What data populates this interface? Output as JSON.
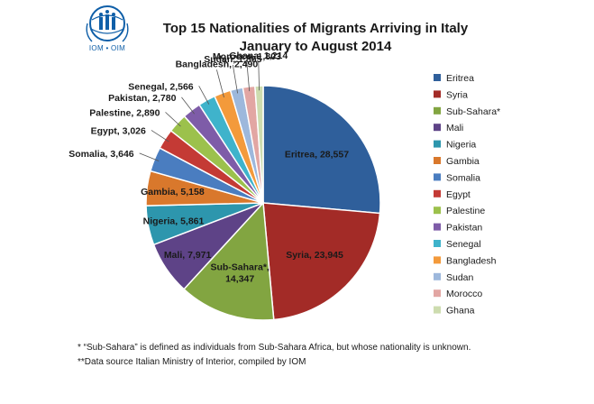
{
  "logo": {
    "text": "IOM • OIM"
  },
  "chart_data": {
    "type": "pie",
    "title": "Top 15 Nationalities of Migrants Arriving in Italy",
    "subtitle": "January to August 2014",
    "slices": [
      {
        "name": "Eritrea",
        "value": 28557,
        "label": "Eritrea, 28,557",
        "color": "#2f5f9b"
      },
      {
        "name": "Syria",
        "value": 23945,
        "label": "Syria, 23,945",
        "color": "#a32b27"
      },
      {
        "name": "Sub-Sahara*",
        "value": 14347,
        "label": "Sub-Sahara*,",
        "label2": "14,347",
        "color": "#82a541"
      },
      {
        "name": "Mali",
        "value": 7971,
        "label": "Mali, 7,971",
        "color": "#5e4387"
      },
      {
        "name": "Nigeria",
        "value": 5861,
        "label": "Nigeria, 5,861",
        "color": "#2d96ad"
      },
      {
        "name": "Gambia",
        "value": 5158,
        "label": "Gambia, 5,158",
        "color": "#d9782c"
      },
      {
        "name": "Somalia",
        "value": 3646,
        "label": "Somalia, 3,646",
        "color": "#4a7dc0"
      },
      {
        "name": "Egypt",
        "value": 3026,
        "label": "Egypt, 3,026",
        "color": "#c43a35"
      },
      {
        "name": "Palestine",
        "value": 2890,
        "label": "Palestine, 2,890",
        "color": "#9cc14c"
      },
      {
        "name": "Pakistan",
        "value": 2780,
        "label": "Pakistan, 2,780",
        "color": "#7e5ca8"
      },
      {
        "name": "Senegal",
        "value": 2566,
        "label": "Senegal, 2,566",
        "color": "#3fb3cb"
      },
      {
        "name": "Bangladesh",
        "value": 2490,
        "label": "Bangladesh, 2,490",
        "color": "#f39a3b"
      },
      {
        "name": "Sudan",
        "value": 1865,
        "label": "Sudan, 1,865",
        "color": "#9db8dc"
      },
      {
        "name": "Morocco",
        "value": 1803,
        "label": "Morocco, 1,803",
        "color": "#e2a6a3"
      },
      {
        "name": "Ghana",
        "value": 1214,
        "label": "Ghana, 1,214",
        "color": "#cddcaf"
      }
    ],
    "legend_position": "right"
  },
  "footnotes": [
    "* “Sub-Sahara” is defined as individuals from Sub-Sahara Africa, but whose nationality is unknown.",
    "**Data source Italian Ministry of Interior, compiled by IOM"
  ]
}
